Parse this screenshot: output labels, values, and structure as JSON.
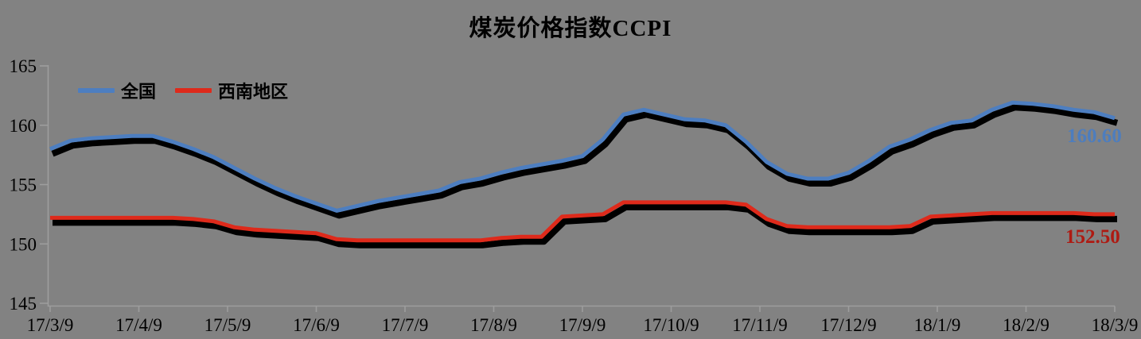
{
  "title": "煤炭价格指数CCPI",
  "colors": {
    "background": "#828282",
    "axis": "#9d9d9d",
    "tick_text": "#000000",
    "shadow": "#000000",
    "national_line": "#4d7ec0",
    "southwest_line": "#de2a1b",
    "national_end_label": "#4d7dbe",
    "southwest_end_label": "#ae1a12"
  },
  "chart_data": {
    "type": "line",
    "title": "煤炭价格指数CCPI",
    "xlabel": "",
    "ylabel": "",
    "ylim": [
      145,
      165
    ],
    "y_ticks": [
      165,
      160,
      155,
      150,
      145
    ],
    "x_tick_labels": [
      "17/3/9",
      "17/4/9",
      "17/5/9",
      "17/6/9",
      "17/7/9",
      "17/8/9",
      "17/9/9",
      "17/10/9",
      "17/11/9",
      "17/12/9",
      "18/1/9",
      "18/2/9",
      "18/3/9"
    ],
    "x_note": "weekly samples, 53 points from 17/3/9 to 18/3/9",
    "grid": false,
    "legend_position": "top-left inside plot",
    "line_style": "colored line with heavy black drop shadow below",
    "series": [
      {
        "name": "全国",
        "color": "#4d7ec0",
        "end_label": "160.60",
        "end_label_color": "#4d7dbe",
        "values": [
          158.0,
          158.7,
          158.9,
          159.0,
          159.1,
          159.1,
          158.6,
          158.0,
          157.3,
          156.4,
          155.5,
          154.7,
          154.0,
          153.4,
          152.8,
          153.2,
          153.6,
          153.9,
          154.2,
          154.5,
          155.2,
          155.5,
          156.0,
          156.4,
          156.7,
          157.0,
          157.4,
          158.8,
          160.9,
          161.3,
          160.9,
          160.5,
          160.4,
          160.0,
          158.6,
          156.9,
          155.9,
          155.5,
          155.5,
          156.0,
          157.0,
          158.2,
          158.8,
          159.6,
          160.2,
          160.4,
          161.3,
          161.9,
          161.8,
          161.6,
          161.3,
          161.1,
          160.6
        ]
      },
      {
        "name": "西南地区",
        "color": "#de2a1b",
        "end_label": "152.50",
        "end_label_color": "#ae1a12",
        "values": [
          152.2,
          152.2,
          152.2,
          152.2,
          152.2,
          152.2,
          152.2,
          152.1,
          151.9,
          151.4,
          151.2,
          151.1,
          151.0,
          150.9,
          150.4,
          150.3,
          150.3,
          150.3,
          150.3,
          150.3,
          150.3,
          150.3,
          150.5,
          150.6,
          150.6,
          152.3,
          152.4,
          152.5,
          153.5,
          153.5,
          153.5,
          153.5,
          153.5,
          153.5,
          153.3,
          152.1,
          151.5,
          151.4,
          151.4,
          151.4,
          151.4,
          151.4,
          151.5,
          152.3,
          152.4,
          152.5,
          152.6,
          152.6,
          152.6,
          152.6,
          152.6,
          152.5,
          152.5
        ]
      }
    ]
  }
}
